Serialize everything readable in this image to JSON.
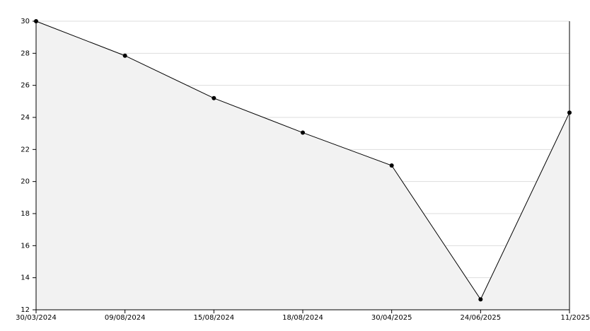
{
  "chart_data": {
    "type": "area",
    "categories": [
      "30/03/2024",
      "09/08/2024",
      "15/08/2024",
      "18/08/2024",
      "30/04/2025",
      "24/06/2025",
      "11/2025"
    ],
    "values": [
      30,
      27.85,
      25.2,
      23.05,
      21,
      12.65,
      24.3
    ],
    "color": "#000000",
    "fill": "#f2f2f2",
    "ylim": [
      12,
      30
    ],
    "yticks": [
      12,
      14,
      16,
      18,
      20,
      22,
      24,
      26,
      28,
      30
    ],
    "grid": true
  }
}
